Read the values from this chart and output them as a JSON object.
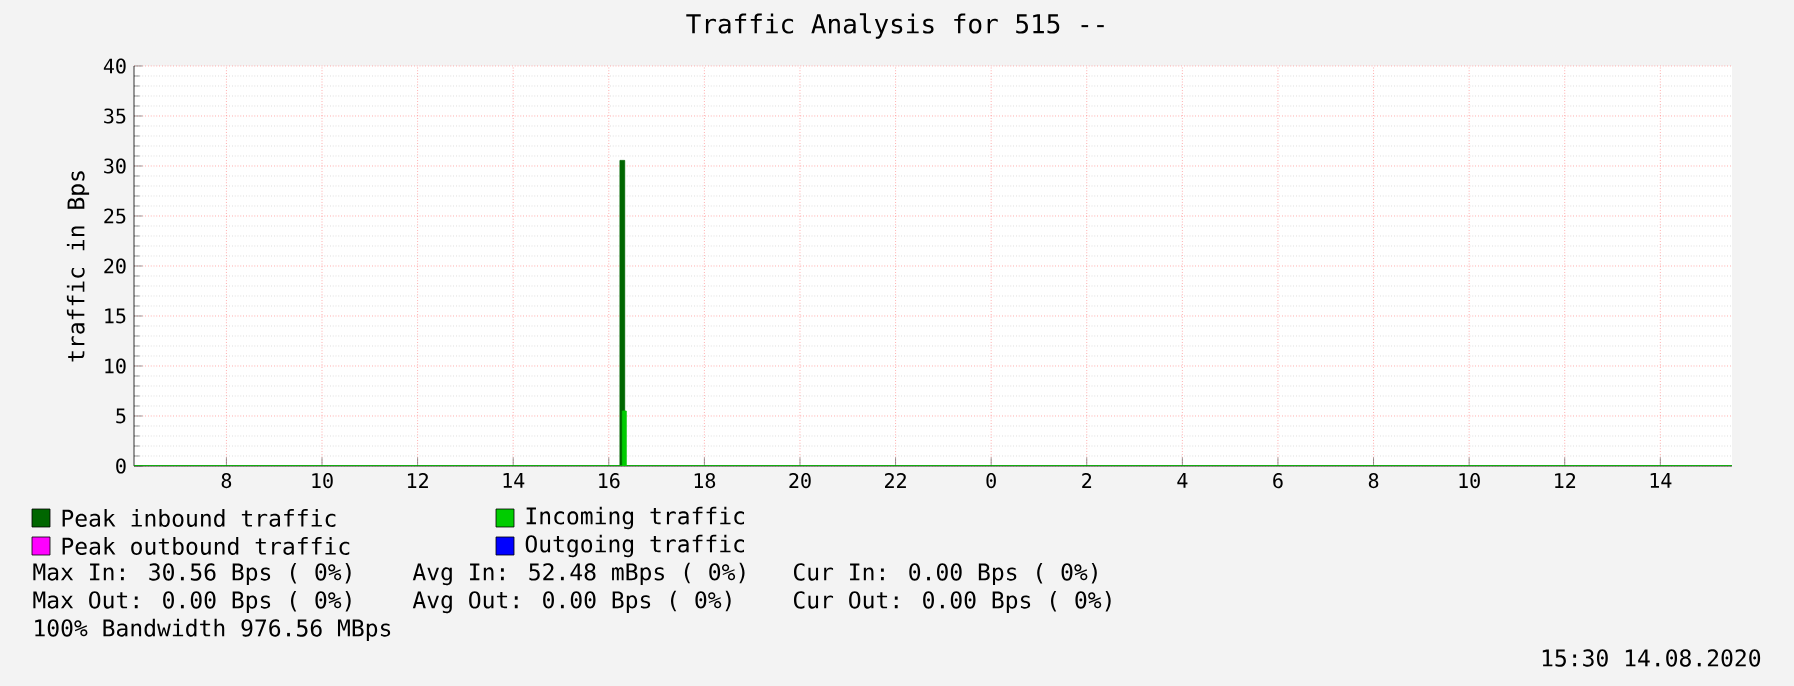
{
  "chart_data": {
    "type": "area",
    "title": "Traffic Analysis for 515 --",
    "ylabel": "traffic in Bps",
    "xlim": [
      "2020-08-13T06:04",
      "2020-08-14T15:30"
    ],
    "xticks": [
      {
        "value": "2020-08-13T08:00",
        "label": "8"
      },
      {
        "value": "2020-08-13T10:00",
        "label": "10"
      },
      {
        "value": "2020-08-13T12:00",
        "label": "12"
      },
      {
        "value": "2020-08-13T14:00",
        "label": "14"
      },
      {
        "value": "2020-08-13T16:00",
        "label": "16"
      },
      {
        "value": "2020-08-13T18:00",
        "label": "18"
      },
      {
        "value": "2020-08-13T20:00",
        "label": "20"
      },
      {
        "value": "2020-08-13T22:00",
        "label": "22"
      },
      {
        "value": "2020-08-14T00:00",
        "label": "0"
      },
      {
        "value": "2020-08-14T02:00",
        "label": "2"
      },
      {
        "value": "2020-08-14T04:00",
        "label": "4"
      },
      {
        "value": "2020-08-14T06:00",
        "label": "6"
      },
      {
        "value": "2020-08-14T08:00",
        "label": "8"
      },
      {
        "value": "2020-08-14T10:00",
        "label": "10"
      },
      {
        "value": "2020-08-14T12:00",
        "label": "12"
      },
      {
        "value": "2020-08-14T14:00",
        "label": "14"
      }
    ],
    "ylim": [
      0,
      40
    ],
    "yticks": [
      0,
      5,
      10,
      15,
      20,
      25,
      30,
      35,
      40
    ],
    "grid": true,
    "legend": "bottom",
    "series": [
      {
        "name": "Peak inbound traffic",
        "color": "#006600",
        "x": [
          "2020-08-13T06:04",
          "2020-08-13T16:14",
          "2020-08-13T16:14",
          "2020-08-13T16:20",
          "2020-08-13T16:20",
          "2020-08-14T15:30"
        ],
        "values": [
          0,
          0,
          30.56,
          30.56,
          0,
          0
        ]
      },
      {
        "name": "Incoming traffic",
        "color": "#00cc00",
        "x": [
          "2020-08-13T06:04",
          "2020-08-13T16:17",
          "2020-08-13T16:17",
          "2020-08-13T16:22",
          "2020-08-13T16:22",
          "2020-08-14T15:30"
        ],
        "values": [
          0,
          0,
          5.5,
          5.5,
          0,
          0
        ]
      },
      {
        "name": "Peak outbound traffic",
        "color": "#ff00ff"
      },
      {
        "name": "Outgoing traffic",
        "color": "#0000ff"
      }
    ],
    "annotations": [
      "Max In: 30.56 Bps ( 0%)",
      "Avg In: 52.48 mBps ( 0%)",
      "Cur In: 0.00 Bps ( 0%)",
      "Max Out: 0.00 Bps ( 0%)",
      "Avg Out: 0.00 Bps ( 0%)",
      "Cur Out: 0.00 Bps ( 0%)",
      "100% Bandwidth 976.56 MBps",
      "15:30 14.08.2020"
    ]
  }
}
